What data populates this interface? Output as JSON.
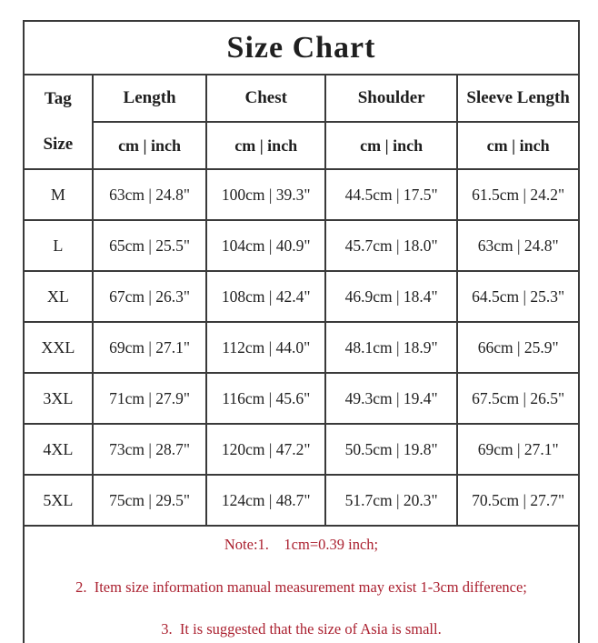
{
  "chart_data": {
    "type": "table",
    "title": "Size Chart",
    "row_header": {
      "line1": "Tag",
      "line2": "Size"
    },
    "columns": [
      {
        "label": "Length",
        "unit": "cm | inch"
      },
      {
        "label": "Chest",
        "unit": "cm | inch"
      },
      {
        "label": "Shoulder",
        "unit": "cm | inch"
      },
      {
        "label": "Sleeve Length",
        "unit": "cm | inch"
      }
    ],
    "rows": [
      {
        "size": "M",
        "length": "63cm | 24.8\"",
        "chest": "100cm | 39.3\"",
        "shoulder": "44.5cm | 17.5\"",
        "sleeve": "61.5cm | 24.2\""
      },
      {
        "size": "L",
        "length": "65cm | 25.5\"",
        "chest": "104cm | 40.9\"",
        "shoulder": "45.7cm | 18.0\"",
        "sleeve": "63cm | 24.8\""
      },
      {
        "size": "XL",
        "length": "67cm | 26.3\"",
        "chest": "108cm | 42.4\"",
        "shoulder": "46.9cm | 18.4\"",
        "sleeve": "64.5cm | 25.3\""
      },
      {
        "size": "XXL",
        "length": "69cm | 27.1\"",
        "chest": "112cm | 44.0\"",
        "shoulder": "48.1cm | 18.9\"",
        "sleeve": "66cm | 25.9\""
      },
      {
        "size": "3XL",
        "length": "71cm | 27.9\"",
        "chest": "116cm | 45.6\"",
        "shoulder": "49.3cm | 19.4\"",
        "sleeve": "67.5cm | 26.5\""
      },
      {
        "size": "4XL",
        "length": "73cm | 28.7\"",
        "chest": "120cm | 47.2\"",
        "shoulder": "50.5cm | 19.8\"",
        "sleeve": "69cm | 27.1\""
      },
      {
        "size": "5XL",
        "length": "75cm | 29.5\"",
        "chest": "124cm | 48.7\"",
        "shoulder": "51.7cm | 20.3\"",
        "sleeve": "70.5cm | 27.7\""
      }
    ],
    "notes": [
      "Note:1.    1cm=0.39 inch;",
      "2.  Item size information manual measurement may exist 1-3cm difference;",
      "3.  It is suggested that the size of Asia is small."
    ]
  },
  "colors": {
    "note_red": "#ab2130",
    "border": "#3a3a3a",
    "text": "#1f1f1f"
  }
}
